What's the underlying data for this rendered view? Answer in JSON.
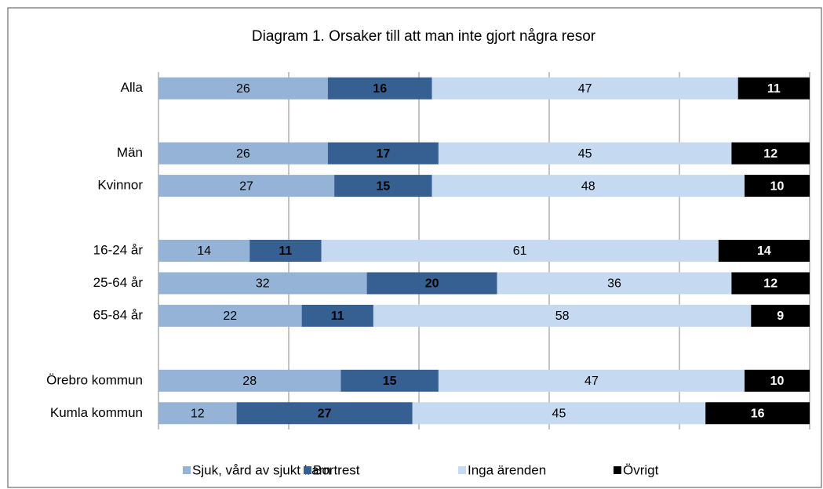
{
  "chart_data": {
    "type": "bar",
    "orientation": "horizontal",
    "stacked": true,
    "title": "Diagram 1. Orsaker till att man inte gjort några resor",
    "categories": [
      "Alla",
      null,
      "Män",
      "Kvinnor",
      null,
      "16-24 år",
      "25-64 år",
      "65-84 år",
      null,
      "Örebro kommun",
      "Kumla kommun"
    ],
    "series": [
      {
        "name": "Sjuk, vård av sjukt barn",
        "color": "#95b3d7",
        "values": [
          26,
          null,
          26,
          27,
          null,
          14,
          32,
          22,
          null,
          28,
          12
        ]
      },
      {
        "name": "Bortrest",
        "color": "#366092",
        "values": [
          16,
          null,
          17,
          15,
          null,
          11,
          20,
          11,
          null,
          15,
          27
        ]
      },
      {
        "name": "Inga ärenden",
        "color": "#c5d9f1",
        "values": [
          47,
          null,
          45,
          48,
          null,
          61,
          36,
          58,
          null,
          47,
          45
        ]
      },
      {
        "name": "Övrigt",
        "color": "#000000",
        "values": [
          11,
          null,
          12,
          10,
          null,
          14,
          12,
          9,
          null,
          10,
          16
        ]
      }
    ],
    "xlim": [
      0,
      100
    ],
    "xticks": [
      0,
      20,
      40,
      60,
      80,
      100
    ],
    "grid": true,
    "legend": "bottom"
  }
}
